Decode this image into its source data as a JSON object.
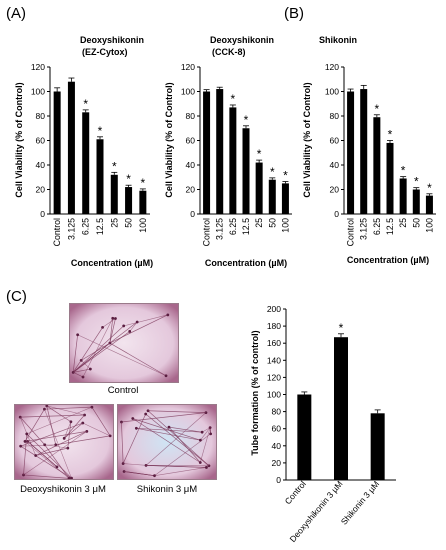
{
  "panels": {
    "a": "(A)",
    "b": "(B)",
    "c": "(C)"
  },
  "chart_data": [
    {
      "type": "bar",
      "title_line1": "Deoxyshikonin",
      "title_line2": "(EZ-Cytox)",
      "ylabel": "Cell Viability (% of Control)",
      "xlabel": "Concentration (µM)",
      "categories": [
        "Control",
        "3.125",
        "6.25",
        "12.5",
        "25",
        "50",
        "100"
      ],
      "values": [
        100,
        108,
        83,
        61,
        32,
        22,
        19
      ],
      "errors": [
        3,
        3,
        2,
        2,
        2,
        1.5,
        1.5
      ],
      "significant": [
        false,
        false,
        true,
        true,
        true,
        true,
        true
      ],
      "ylim": [
        0,
        120
      ],
      "yticks": [
        "0",
        "20",
        "40",
        "60",
        "80",
        "100",
        "120"
      ]
    },
    {
      "type": "bar",
      "title_line1": "Deoxyshikonin",
      "title_line2": "(CCK-8)",
      "ylabel": "Cell Viability (% of Control)",
      "xlabel": "Concentration (µM)",
      "categories": [
        "Control",
        "3.125",
        "6.25",
        "12.5",
        "25",
        "50",
        "100"
      ],
      "values": [
        100,
        102,
        87,
        70,
        42,
        28,
        25
      ],
      "errors": [
        1.5,
        1.5,
        2,
        2,
        2,
        1.5,
        1.5
      ],
      "significant": [
        false,
        false,
        true,
        true,
        true,
        true,
        true
      ],
      "ylim": [
        0,
        120
      ],
      "yticks": [
        "0",
        "20",
        "40",
        "60",
        "80",
        "100",
        "120"
      ]
    },
    {
      "type": "bar",
      "title_line1": "Shikonin",
      "title_line2": "",
      "ylabel": "Cell Viability (% of Control)",
      "xlabel": "Concentration (µM)",
      "categories": [
        "Control",
        "3.125",
        "6.25",
        "12.5",
        "25",
        "50",
        "100"
      ],
      "values": [
        100,
        102,
        79,
        58,
        29,
        20,
        15
      ],
      "errors": [
        2,
        3,
        2,
        2,
        1.5,
        1.5,
        1.5
      ],
      "significant": [
        false,
        false,
        true,
        true,
        true,
        true,
        true
      ],
      "ylim": [
        0,
        120
      ],
      "yticks": [
        "0",
        "20",
        "40",
        "60",
        "80",
        "100",
        "120"
      ]
    },
    {
      "type": "bar",
      "title_line1": "",
      "title_line2": "",
      "ylabel": "Tube formation (% of control)",
      "xlabel": "",
      "categories": [
        "Control",
        "Deoxyshikonin 3 µM",
        "Shikonin 3 µM"
      ],
      "values": [
        100,
        167,
        78
      ],
      "errors": [
        3,
        4,
        4
      ],
      "significant": [
        false,
        true,
        false
      ],
      "ylim": [
        0,
        200
      ],
      "yticks": [
        "0",
        "20",
        "40",
        "60",
        "80",
        "100",
        "120",
        "140",
        "160",
        "180",
        "200"
      ]
    }
  ],
  "micrographs": {
    "control": "Control",
    "deoxy": "Deoxyshikonin 3 μM",
    "shikonin": "Shikonin 3 μM"
  },
  "significance_mark": "*",
  "colors": {
    "bar": "#000000",
    "dish_bg": "#e4c8dc",
    "network": "#7a3558"
  }
}
